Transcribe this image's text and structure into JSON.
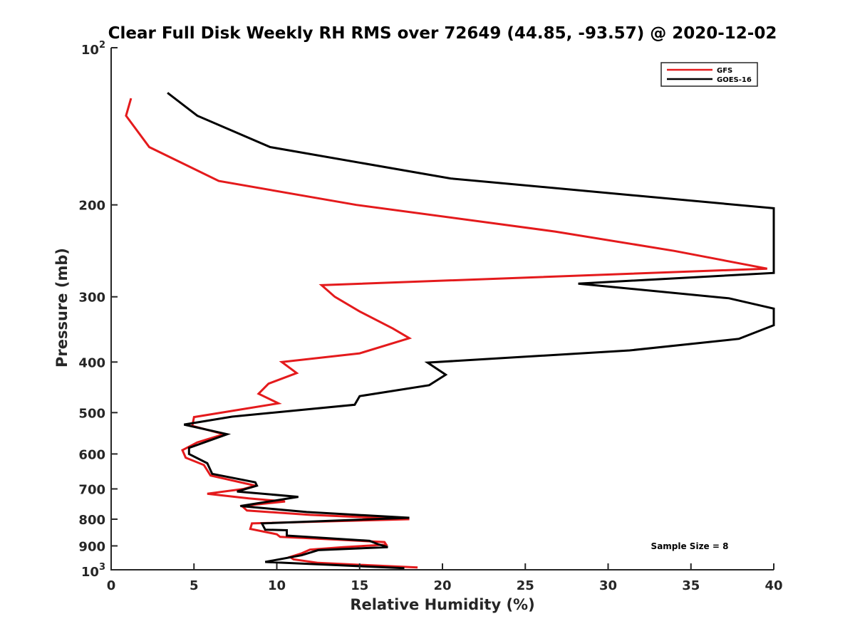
{
  "chart_data": {
    "type": "line",
    "title": "Clear Full Disk Weekly RH RMS over 72649 (44.85, -93.57) @ 2020-12-02",
    "xlabel": "Relative Humidity (%)",
    "ylabel": "Pressure (mb)",
    "xlim": [
      0,
      40
    ],
    "ylim": [
      100,
      1000
    ],
    "yscale": "log",
    "y_reversed": true,
    "grid": false,
    "legend_position": "top-right",
    "x_ticks": [
      0,
      5,
      10,
      15,
      20,
      25,
      30,
      35,
      40
    ],
    "x_tick_labels": [
      "0",
      "5",
      "10",
      "15",
      "20",
      "25",
      "30",
      "35",
      "40"
    ],
    "y_ticks": [
      200,
      300,
      400,
      500,
      600,
      700,
      800,
      900
    ],
    "y_tick_labels": [
      "200",
      "300",
      "400",
      "500",
      "600",
      "700",
      "800",
      "900"
    ],
    "y_ticks_power": [
      {
        "value": 100,
        "base": "10",
        "exp": "2"
      },
      {
        "value": 1000,
        "base": "10",
        "exp": "3"
      }
    ],
    "annotation": "Sample Size = 8",
    "series": [
      {
        "name": "GFS",
        "color": "#e41a1c",
        "points": [
          [
            1.2,
            125
          ],
          [
            0.9,
            135
          ],
          [
            2.3,
            155
          ],
          [
            6.5,
            180
          ],
          [
            14.8,
            200
          ],
          [
            26.8,
            225
          ],
          [
            34.0,
            245
          ],
          [
            39.6,
            265
          ],
          [
            12.7,
            285
          ],
          [
            13.5,
            300
          ],
          [
            15.0,
            320
          ],
          [
            17.0,
            345
          ],
          [
            18.0,
            360
          ],
          [
            15.0,
            385
          ],
          [
            10.3,
            400
          ],
          [
            11.2,
            420
          ],
          [
            9.5,
            440
          ],
          [
            8.9,
            460
          ],
          [
            10.1,
            480
          ],
          [
            5.0,
            510
          ],
          [
            4.9,
            530
          ],
          [
            6.8,
            550
          ],
          [
            5.2,
            570
          ],
          [
            4.3,
            590
          ],
          [
            4.5,
            610
          ],
          [
            5.6,
            630
          ],
          [
            6.0,
            660
          ],
          [
            8.7,
            690
          ],
          [
            8.0,
            700
          ],
          [
            5.8,
            715
          ],
          [
            8.3,
            730
          ],
          [
            10.5,
            740
          ],
          [
            9.6,
            745
          ],
          [
            7.9,
            755
          ],
          [
            8.2,
            770
          ],
          [
            12.0,
            785
          ],
          [
            18.0,
            800
          ],
          [
            8.5,
            815
          ],
          [
            8.4,
            835
          ],
          [
            10.0,
            855
          ],
          [
            10.2,
            865
          ],
          [
            12.0,
            870
          ],
          [
            16.5,
            885
          ],
          [
            16.6,
            895
          ],
          [
            14.0,
            905
          ],
          [
            12.0,
            915
          ],
          [
            11.5,
            930
          ],
          [
            10.8,
            945
          ],
          [
            11.0,
            955
          ],
          [
            12.5,
            970
          ],
          [
            18.5,
            990
          ]
        ]
      },
      {
        "name": "GOES-16",
        "color": "#000000",
        "points": [
          [
            3.4,
            122
          ],
          [
            5.2,
            135
          ],
          [
            9.6,
            155
          ],
          [
            20.5,
            178
          ],
          [
            40.0,
            203
          ],
          [
            40.0,
            270
          ],
          [
            28.2,
            283
          ],
          [
            37.3,
            302
          ],
          [
            40.0,
            316
          ],
          [
            40.0,
            340
          ],
          [
            37.9,
            361
          ],
          [
            31.3,
            380
          ],
          [
            19.1,
            401
          ],
          [
            20.2,
            423
          ],
          [
            19.2,
            443
          ],
          [
            15.0,
            465
          ],
          [
            14.7,
            483
          ],
          [
            7.3,
            509
          ],
          [
            4.4,
            527
          ],
          [
            7.0,
            550
          ],
          [
            4.7,
            584
          ],
          [
            4.7,
            600
          ],
          [
            5.8,
            625
          ],
          [
            6.1,
            655
          ],
          [
            8.7,
            680
          ],
          [
            8.8,
            690
          ],
          [
            7.6,
            708
          ],
          [
            11.3,
            725
          ],
          [
            7.8,
            755
          ],
          [
            11.8,
            775
          ],
          [
            18.0,
            795
          ],
          [
            9.1,
            815
          ],
          [
            9.3,
            838
          ],
          [
            10.6,
            840
          ],
          [
            10.6,
            860
          ],
          [
            15.6,
            880
          ],
          [
            16.1,
            893
          ],
          [
            16.7,
            905
          ],
          [
            12.5,
            917
          ],
          [
            11.5,
            938
          ],
          [
            9.3,
            966
          ],
          [
            17.7,
            993
          ]
        ]
      }
    ]
  }
}
